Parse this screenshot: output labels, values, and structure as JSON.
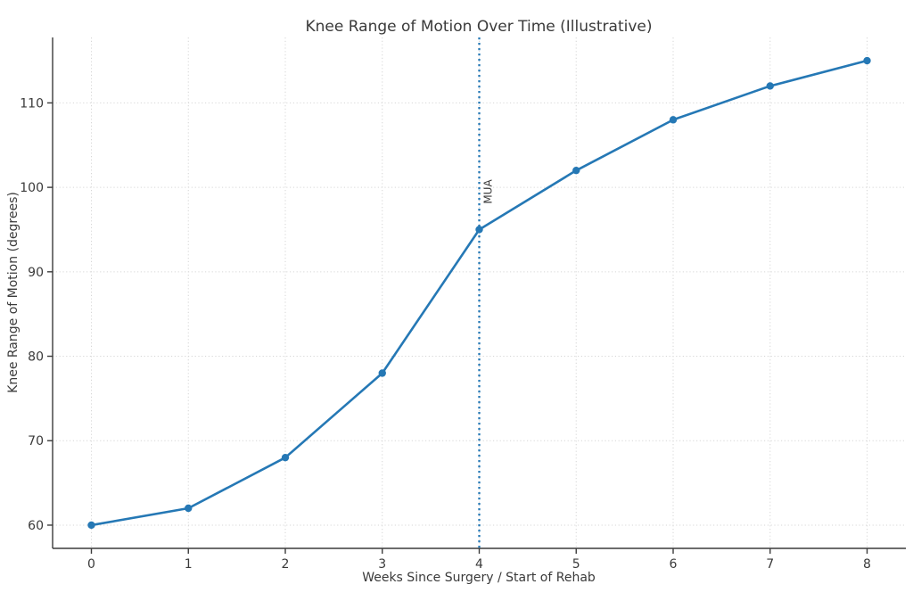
{
  "chart_data": {
    "type": "line",
    "title": "Knee Range of Motion Over Time (Illustrative)",
    "xlabel": "Weeks Since Surgery / Start of Rehab",
    "ylabel": "Knee Range of Motion (degrees)",
    "x": [
      0,
      1,
      2,
      3,
      4,
      5,
      6,
      7,
      8
    ],
    "values": [
      60,
      62,
      68,
      78,
      95,
      102,
      108,
      112,
      115
    ],
    "xticks": [
      "0",
      "1",
      "2",
      "3",
      "4",
      "5",
      "6",
      "7",
      "8"
    ],
    "yticks": [
      "60",
      "70",
      "80",
      "90",
      "100",
      "110"
    ],
    "ytick_values": [
      60,
      70,
      80,
      90,
      100,
      110
    ],
    "xlim": [
      -0.4,
      8.4
    ],
    "ylim": [
      57.25,
      117.75
    ],
    "grid": true,
    "legend": "none",
    "annotation": {
      "label": "MUA",
      "x": 4,
      "style": "dotted-vline"
    },
    "colors": {
      "line": "#2578b5",
      "marker": "#2578b5",
      "vline": "#2578b5",
      "grid": "#d6d6d6",
      "spine": "#3b3b3b",
      "text": "#3a3a3a",
      "background": "#ffffff"
    }
  }
}
